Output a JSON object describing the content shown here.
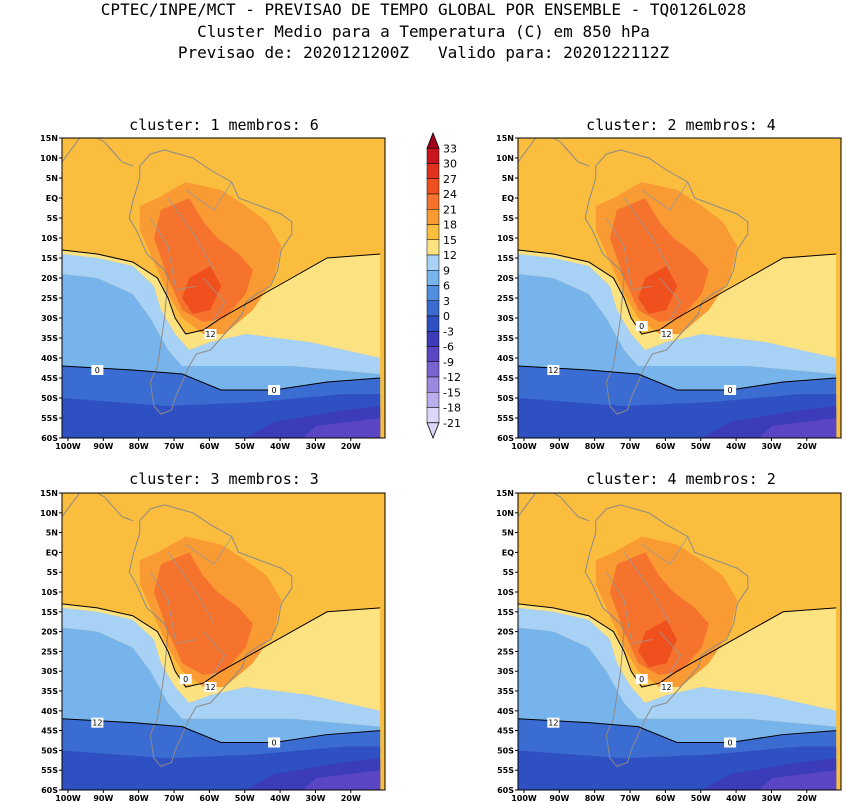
{
  "header": {
    "line1": "CPTEC/INPE/MCT - PREVISAO DE TEMPO GLOBAL POR ENSEMBLE - TQ0126L028",
    "line2": "Cluster Medio para a Temperatura (C) em 850 hPa",
    "line3": "Previsao de: 2020121200Z   Valido para: 2020122112Z"
  },
  "axes": {
    "lat_labels": [
      "15N",
      "10N",
      "5N",
      "EQ",
      "5S",
      "10S",
      "15S",
      "20S",
      "25S",
      "30S",
      "35S",
      "40S",
      "45S",
      "50S",
      "55S",
      "60S"
    ],
    "lon_labels": [
      "100W",
      "90W",
      "80W",
      "70W",
      "60W",
      "50W",
      "40W",
      "30W",
      "20W"
    ]
  },
  "colorbar": {
    "levels": [
      "33",
      "30",
      "27",
      "24",
      "21",
      "18",
      "15",
      "12",
      "9",
      "6",
      "3",
      "0",
      "-3",
      "-6",
      "-9",
      "-12",
      "-15",
      "-18",
      "-21"
    ],
    "colors": [
      "#a0001e",
      "#c8141e",
      "#e0321e",
      "#f0501e",
      "#f5732d",
      "#f99a32",
      "#fbbd3e",
      "#fde282",
      "#a8d2f5",
      "#78b4ec",
      "#508ee0",
      "#3a6cd2",
      "#2f50c3",
      "#3c3cb9",
      "#5a46c3",
      "#7a64d2",
      "#9a88e1",
      "#bcaeee",
      "#dcd6f8"
    ]
  },
  "panels": [
    {
      "title": "cluster: 1  membros: 6",
      "contour_labels": [
        "12",
        "0",
        "0"
      ]
    },
    {
      "title": "cluster: 2  membros: 4",
      "contour_labels": [
        "12",
        "12",
        "0",
        "0"
      ]
    },
    {
      "title": "cluster: 3  membros: 3",
      "contour_labels": [
        "12",
        "12",
        "0",
        "0"
      ]
    },
    {
      "title": "cluster: 4  membros: 2",
      "contour_labels": [
        "12",
        "12",
        "0",
        "0"
      ]
    }
  ]
}
